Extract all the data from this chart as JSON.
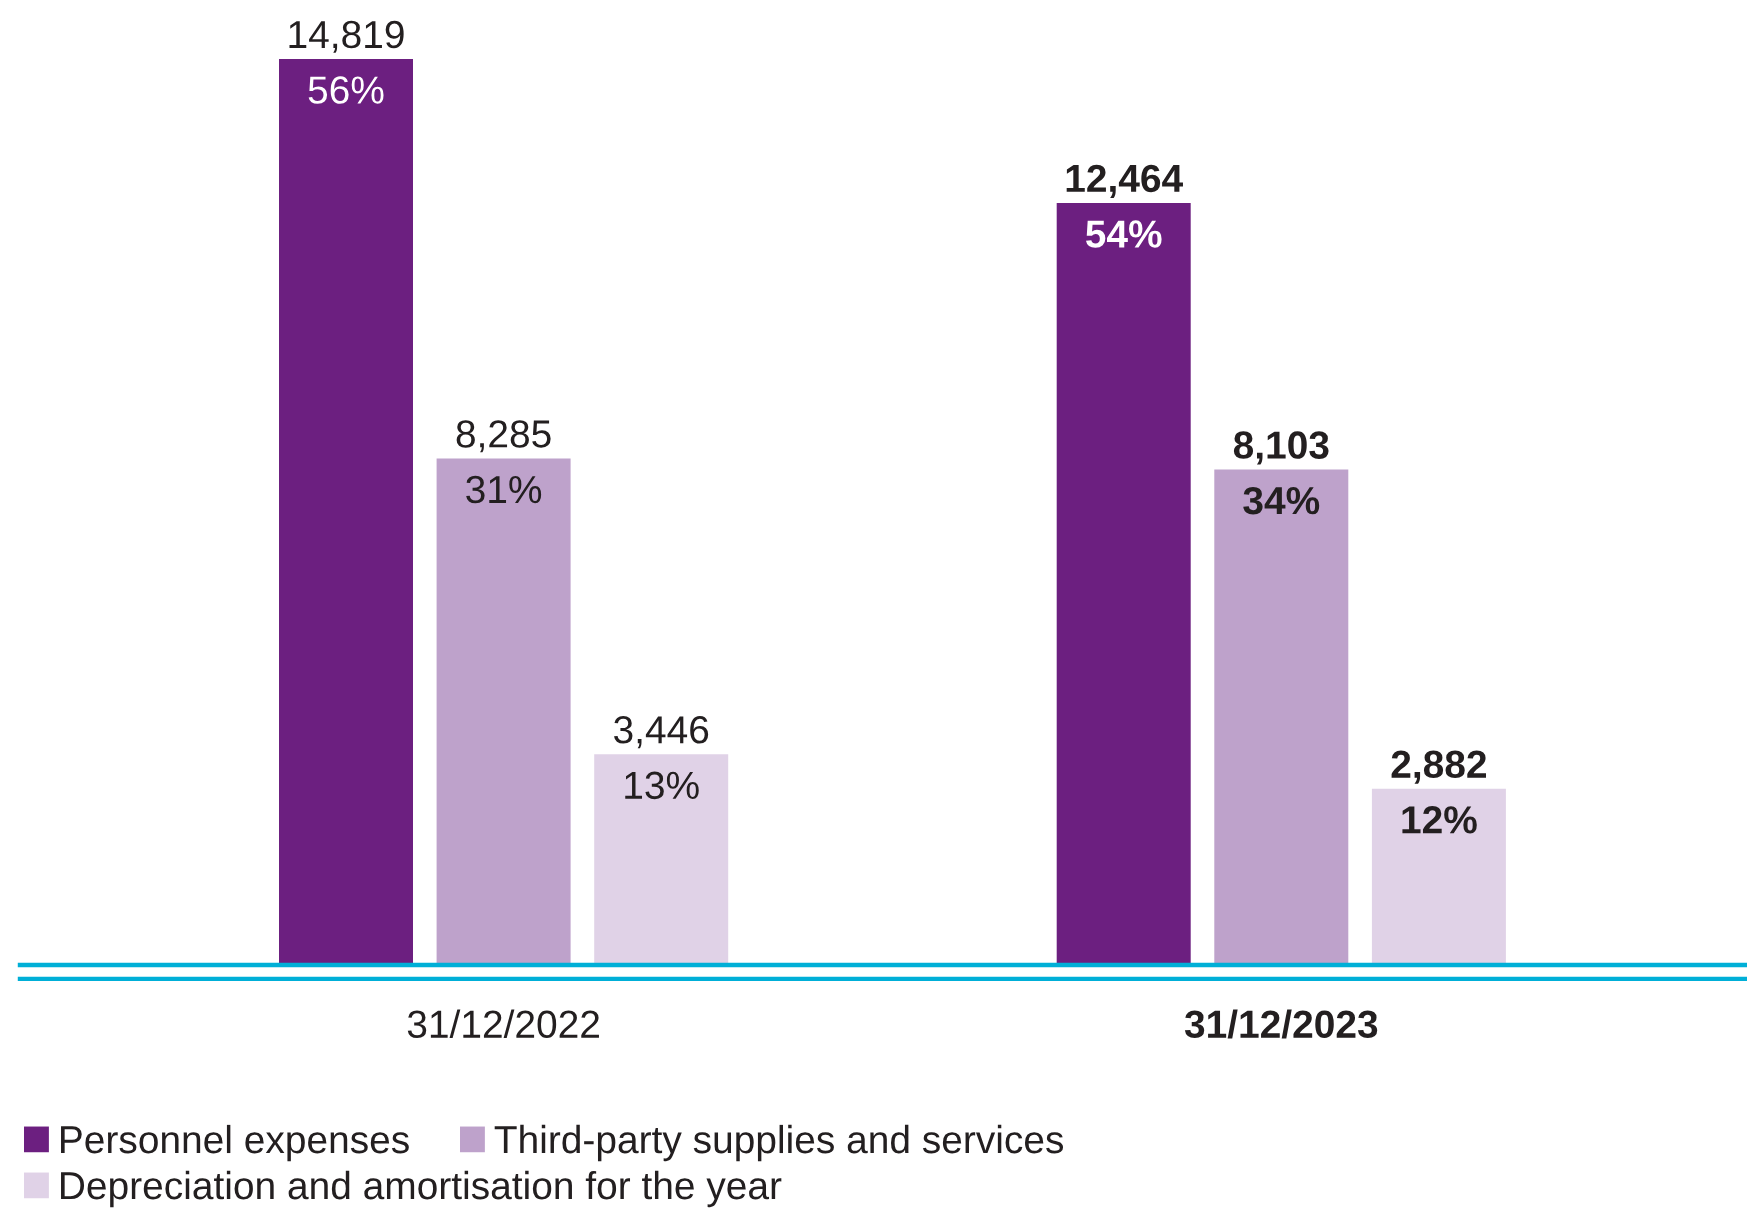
{
  "chart_data": {
    "type": "bar",
    "categories": [
      "31/12/2022",
      "31/12/2023"
    ],
    "series": [
      {
        "name": "Personnel expenses",
        "color": "#6c1f80",
        "values": [
          14819,
          12464
        ],
        "value_labels": [
          "14,819\n56%",
          "12,464\n54%"
        ]
      },
      {
        "name": "Third-party supplies and services",
        "color": "#bea2cb",
        "values": [
          8285,
          8103
        ],
        "value_labels": [
          "8,285\n31%",
          "8,103\n34%"
        ]
      },
      {
        "name": "Depreciation and amortisation for the year",
        "color": "#e0d2e7",
        "values": [
          3446,
          2882
        ],
        "value_labels": [
          "3,446\n13%",
          "2,882\n12%"
        ]
      }
    ],
    "legend": "bottom left"
  }
}
